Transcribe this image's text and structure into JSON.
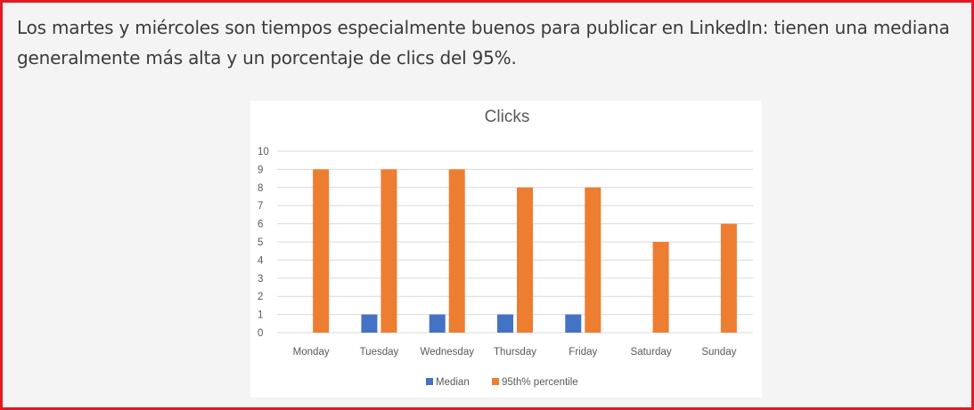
{
  "caption": "Los martes y miércoles son tiempos especialmente buenos para publicar en LinkedIn: tienen una mediana generalmente más alta y un porcentaje de clics del 95%.",
  "colors": {
    "frame_border": "#e21a22",
    "median": "#4472c4",
    "percentile": "#ed7d31",
    "gridline": "#d9d9d9",
    "text": "#595959"
  },
  "chart_data": {
    "type": "bar",
    "title": "Clicks",
    "xlabel": "",
    "ylabel": "",
    "categories": [
      "Monday",
      "Tuesday",
      "Wednesday",
      "Thursday",
      "Friday",
      "Saturday",
      "Sunday"
    ],
    "series": [
      {
        "name": "Median",
        "values": [
          0,
          1,
          1,
          1,
          1,
          0,
          0
        ]
      },
      {
        "name": "95th% percentile",
        "values": [
          9,
          9,
          9,
          8,
          8,
          5,
          6
        ]
      }
    ],
    "ylim": [
      0,
      10
    ],
    "yticks": [
      "0",
      "1",
      "2",
      "3",
      "4",
      "5",
      "6",
      "7",
      "8",
      "9",
      "10"
    ],
    "grid": true,
    "legend_position": "bottom"
  }
}
